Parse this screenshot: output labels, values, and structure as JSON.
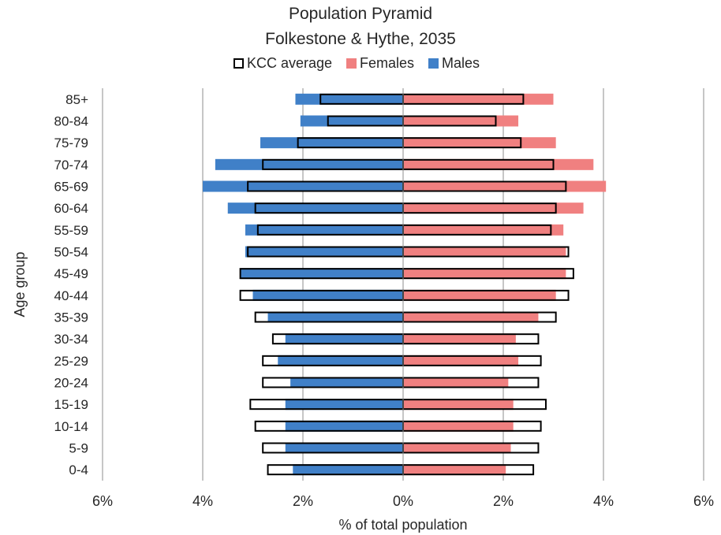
{
  "chart_data": {
    "type": "bar",
    "title": "Population Pyramid",
    "subtitle": "Folkestone & Hythe, 2035",
    "xlabel": "% of total population",
    "ylabel": "Age group",
    "xlim": [
      -6,
      6
    ],
    "x_ticks": [
      "6%",
      "4%",
      "2%",
      "0%",
      "2%",
      "4%",
      "6%"
    ],
    "x_tick_values": [
      -6,
      -4,
      -2,
      0,
      2,
      4,
      6
    ],
    "grid": "vertical",
    "legend_position": "top",
    "categories": [
      "85+",
      "80-84",
      "75-79",
      "70-74",
      "65-69",
      "60-64",
      "55-59",
      "50-54",
      "45-49",
      "40-44",
      "35-39",
      "30-34",
      "25-29",
      "20-24",
      "15-19",
      "10-14",
      "5-9",
      "0-4"
    ],
    "series": [
      {
        "name": "Females",
        "color": "#f08080",
        "values": [
          3.0,
          2.3,
          3.05,
          3.8,
          4.05,
          3.6,
          3.2,
          3.25,
          3.25,
          3.05,
          2.7,
          2.25,
          2.3,
          2.1,
          2.2,
          2.2,
          2.15,
          2.05
        ]
      },
      {
        "name": "Males",
        "color": "#4080c8",
        "values": [
          -2.15,
          -2.05,
          -2.85,
          -3.75,
          -4.0,
          -3.5,
          -3.15,
          -3.15,
          -3.25,
          -3.0,
          -2.7,
          -2.35,
          -2.5,
          -2.25,
          -2.35,
          -2.35,
          -2.35,
          -2.2
        ]
      },
      {
        "name": "KCC average",
        "color": "#000000",
        "style": "outline",
        "female_values": [
          2.4,
          1.85,
          2.35,
          3.0,
          3.25,
          3.05,
          2.95,
          3.3,
          3.4,
          3.3,
          3.05,
          2.7,
          2.75,
          2.7,
          2.85,
          2.75,
          2.7,
          2.6
        ],
        "male_values": [
          -1.65,
          -1.5,
          -2.1,
          -2.8,
          -3.1,
          -2.95,
          -2.9,
          -3.1,
          -3.25,
          -3.25,
          -2.95,
          -2.6,
          -2.8,
          -2.8,
          -3.05,
          -2.95,
          -2.8,
          -2.7
        ]
      }
    ]
  },
  "legend": [
    {
      "label": "KCC average",
      "kind": "outline",
      "color": "#000000"
    },
    {
      "label": "Females",
      "kind": "fill",
      "color": "#f08080"
    },
    {
      "label": "Males",
      "kind": "fill",
      "color": "#4080c8"
    }
  ]
}
